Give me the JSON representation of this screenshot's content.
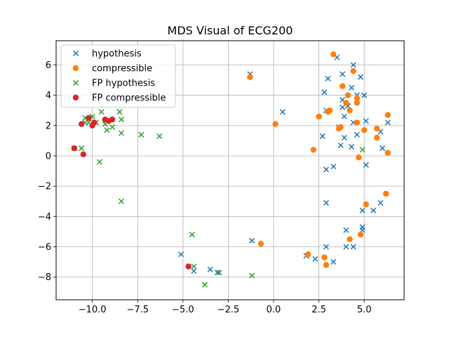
{
  "chart_data": {
    "type": "scatter",
    "title": "MDS Visual of ECG200",
    "xlabel": "",
    "ylabel": "",
    "xlim": [
      -12.0,
      7.2
    ],
    "ylim": [
      -9.5,
      7.6
    ],
    "xticks": [
      -10.0,
      -7.5,
      -5.0,
      -2.5,
      0.0,
      2.5,
      5.0
    ],
    "xtick_labels": [
      "−10.0",
      "−7.5",
      "−5.0",
      "−2.5",
      "0.0",
      "2.5",
      "5.0"
    ],
    "yticks": [
      -8,
      -6,
      -4,
      -2,
      0,
      2,
      4,
      6
    ],
    "ytick_labels": [
      "−8",
      "−6",
      "−4",
      "−2",
      "0",
      "2",
      "4",
      "6"
    ],
    "grid": true,
    "legend_position": "top-left",
    "series": [
      {
        "name": "hypothesis",
        "marker": "x",
        "color": "#1f77b4",
        "points": [
          [
            -1.3,
            5.4
          ],
          [
            0.5,
            2.9
          ],
          [
            -5.1,
            -6.5
          ],
          [
            -4.4,
            -7.6
          ],
          [
            -3.5,
            -7.5
          ],
          [
            -3.1,
            -7.7
          ],
          [
            -1.2,
            -5.6
          ],
          [
            1.8,
            -6.6
          ],
          [
            2.3,
            -6.8
          ],
          [
            2.9,
            -6.0
          ],
          [
            3.3,
            -7.0
          ],
          [
            2.9,
            -3.1
          ],
          [
            3.5,
            6.5
          ],
          [
            4.4,
            6.0
          ],
          [
            3.0,
            5.1
          ],
          [
            3.8,
            5.4
          ],
          [
            4.3,
            4.5
          ],
          [
            4.8,
            5.2
          ],
          [
            2.8,
            4.2
          ],
          [
            4.6,
            4.0
          ],
          [
            5.0,
            4.0
          ],
          [
            3.8,
            3.7
          ],
          [
            4.1,
            3.3
          ],
          [
            3.8,
            3.2
          ],
          [
            2.9,
            3.0
          ],
          [
            3.9,
            2.6
          ],
          [
            4.4,
            2.2
          ],
          [
            5.1,
            2.3
          ],
          [
            6.3,
            2.2
          ],
          [
            5.9,
            1.6
          ],
          [
            4.6,
            1.4
          ],
          [
            3.6,
            1.9
          ],
          [
            2.7,
            1.3
          ],
          [
            3.9,
            1.2
          ],
          [
            3.7,
            0.7
          ],
          [
            4.3,
            0.6
          ],
          [
            6.0,
            0.5
          ],
          [
            2.9,
            -0.9
          ],
          [
            3.3,
            -0.7
          ],
          [
            5.1,
            -0.6
          ],
          [
            4.0,
            -4.9
          ],
          [
            4.9,
            -4.7
          ],
          [
            4.9,
            -4.9
          ],
          [
            4.0,
            -6.0
          ],
          [
            4.4,
            -6.0
          ],
          [
            5.5,
            -3.6
          ],
          [
            4.9,
            -3.6
          ],
          [
            5.9,
            -3.1
          ]
        ]
      },
      {
        "name": "compressible",
        "marker": "o",
        "color": "#ff7f0e",
        "points": [
          [
            -1.3,
            5.2
          ],
          [
            0.1,
            2.1
          ],
          [
            -0.7,
            -5.8
          ],
          [
            1.9,
            -6.5
          ],
          [
            2.8,
            -6.7
          ],
          [
            2.9,
            -7.2
          ],
          [
            3.3,
            6.7
          ],
          [
            4.4,
            5.6
          ],
          [
            3.8,
            4.6
          ],
          [
            4.1,
            4.0
          ],
          [
            4.6,
            3.8
          ],
          [
            4.6,
            3.5
          ],
          [
            4.0,
            3.5
          ],
          [
            4.2,
            3.0
          ],
          [
            3.1,
            3.0
          ],
          [
            3.0,
            2.9
          ],
          [
            2.5,
            2.6
          ],
          [
            4.6,
            2.2
          ],
          [
            3.6,
            1.8
          ],
          [
            3.7,
            1.9
          ],
          [
            5.0,
            1.7
          ],
          [
            5.7,
            1.8
          ],
          [
            5.7,
            1.2
          ],
          [
            6.3,
            2.7
          ],
          [
            6.3,
            0.2
          ],
          [
            2.2,
            0.4
          ],
          [
            4.7,
            -0.1
          ],
          [
            5.1,
            -3.2
          ],
          [
            6.2,
            -2.5
          ],
          [
            4.8,
            -5.2
          ],
          [
            4.2,
            -5.5
          ]
        ]
      },
      {
        "name": "FP hypothesis",
        "marker": "x",
        "color": "#2ca02c",
        "points": [
          [
            -11.0,
            0.5
          ],
          [
            -10.6,
            0.5
          ],
          [
            -10.4,
            2.5
          ],
          [
            -10.4,
            2.2
          ],
          [
            -10.2,
            2.2
          ],
          [
            -10.0,
            2.6
          ],
          [
            -9.8,
            2.2
          ],
          [
            -9.5,
            2.9
          ],
          [
            -9.3,
            2.1
          ],
          [
            -9.2,
            1.7
          ],
          [
            -8.9,
            1.9
          ],
          [
            -8.5,
            2.9
          ],
          [
            -8.4,
            2.4
          ],
          [
            -8.4,
            1.5
          ],
          [
            -7.3,
            1.4
          ],
          [
            -6.3,
            1.3
          ],
          [
            -9.6,
            -0.4
          ],
          [
            -8.4,
            -3.0
          ],
          [
            -4.5,
            -5.2
          ],
          [
            -4.4,
            -7.3
          ],
          [
            -3.0,
            -7.7
          ],
          [
            -3.8,
            -8.5
          ],
          [
            -1.2,
            -7.9
          ],
          [
            4.9,
            0.4
          ]
        ]
      },
      {
        "name": "FP compressible",
        "marker": "o",
        "color": "#d62728",
        "points": [
          [
            -11.0,
            0.5
          ],
          [
            -10.5,
            0.1
          ],
          [
            -10.6,
            2.1
          ],
          [
            -10.2,
            2.5
          ],
          [
            -9.9,
            2.2
          ],
          [
            -10.0,
            2.0
          ],
          [
            -9.3,
            2.4
          ],
          [
            -9.1,
            2.3
          ],
          [
            -8.9,
            2.4
          ],
          [
            -4.7,
            -7.3
          ]
        ]
      }
    ]
  }
}
